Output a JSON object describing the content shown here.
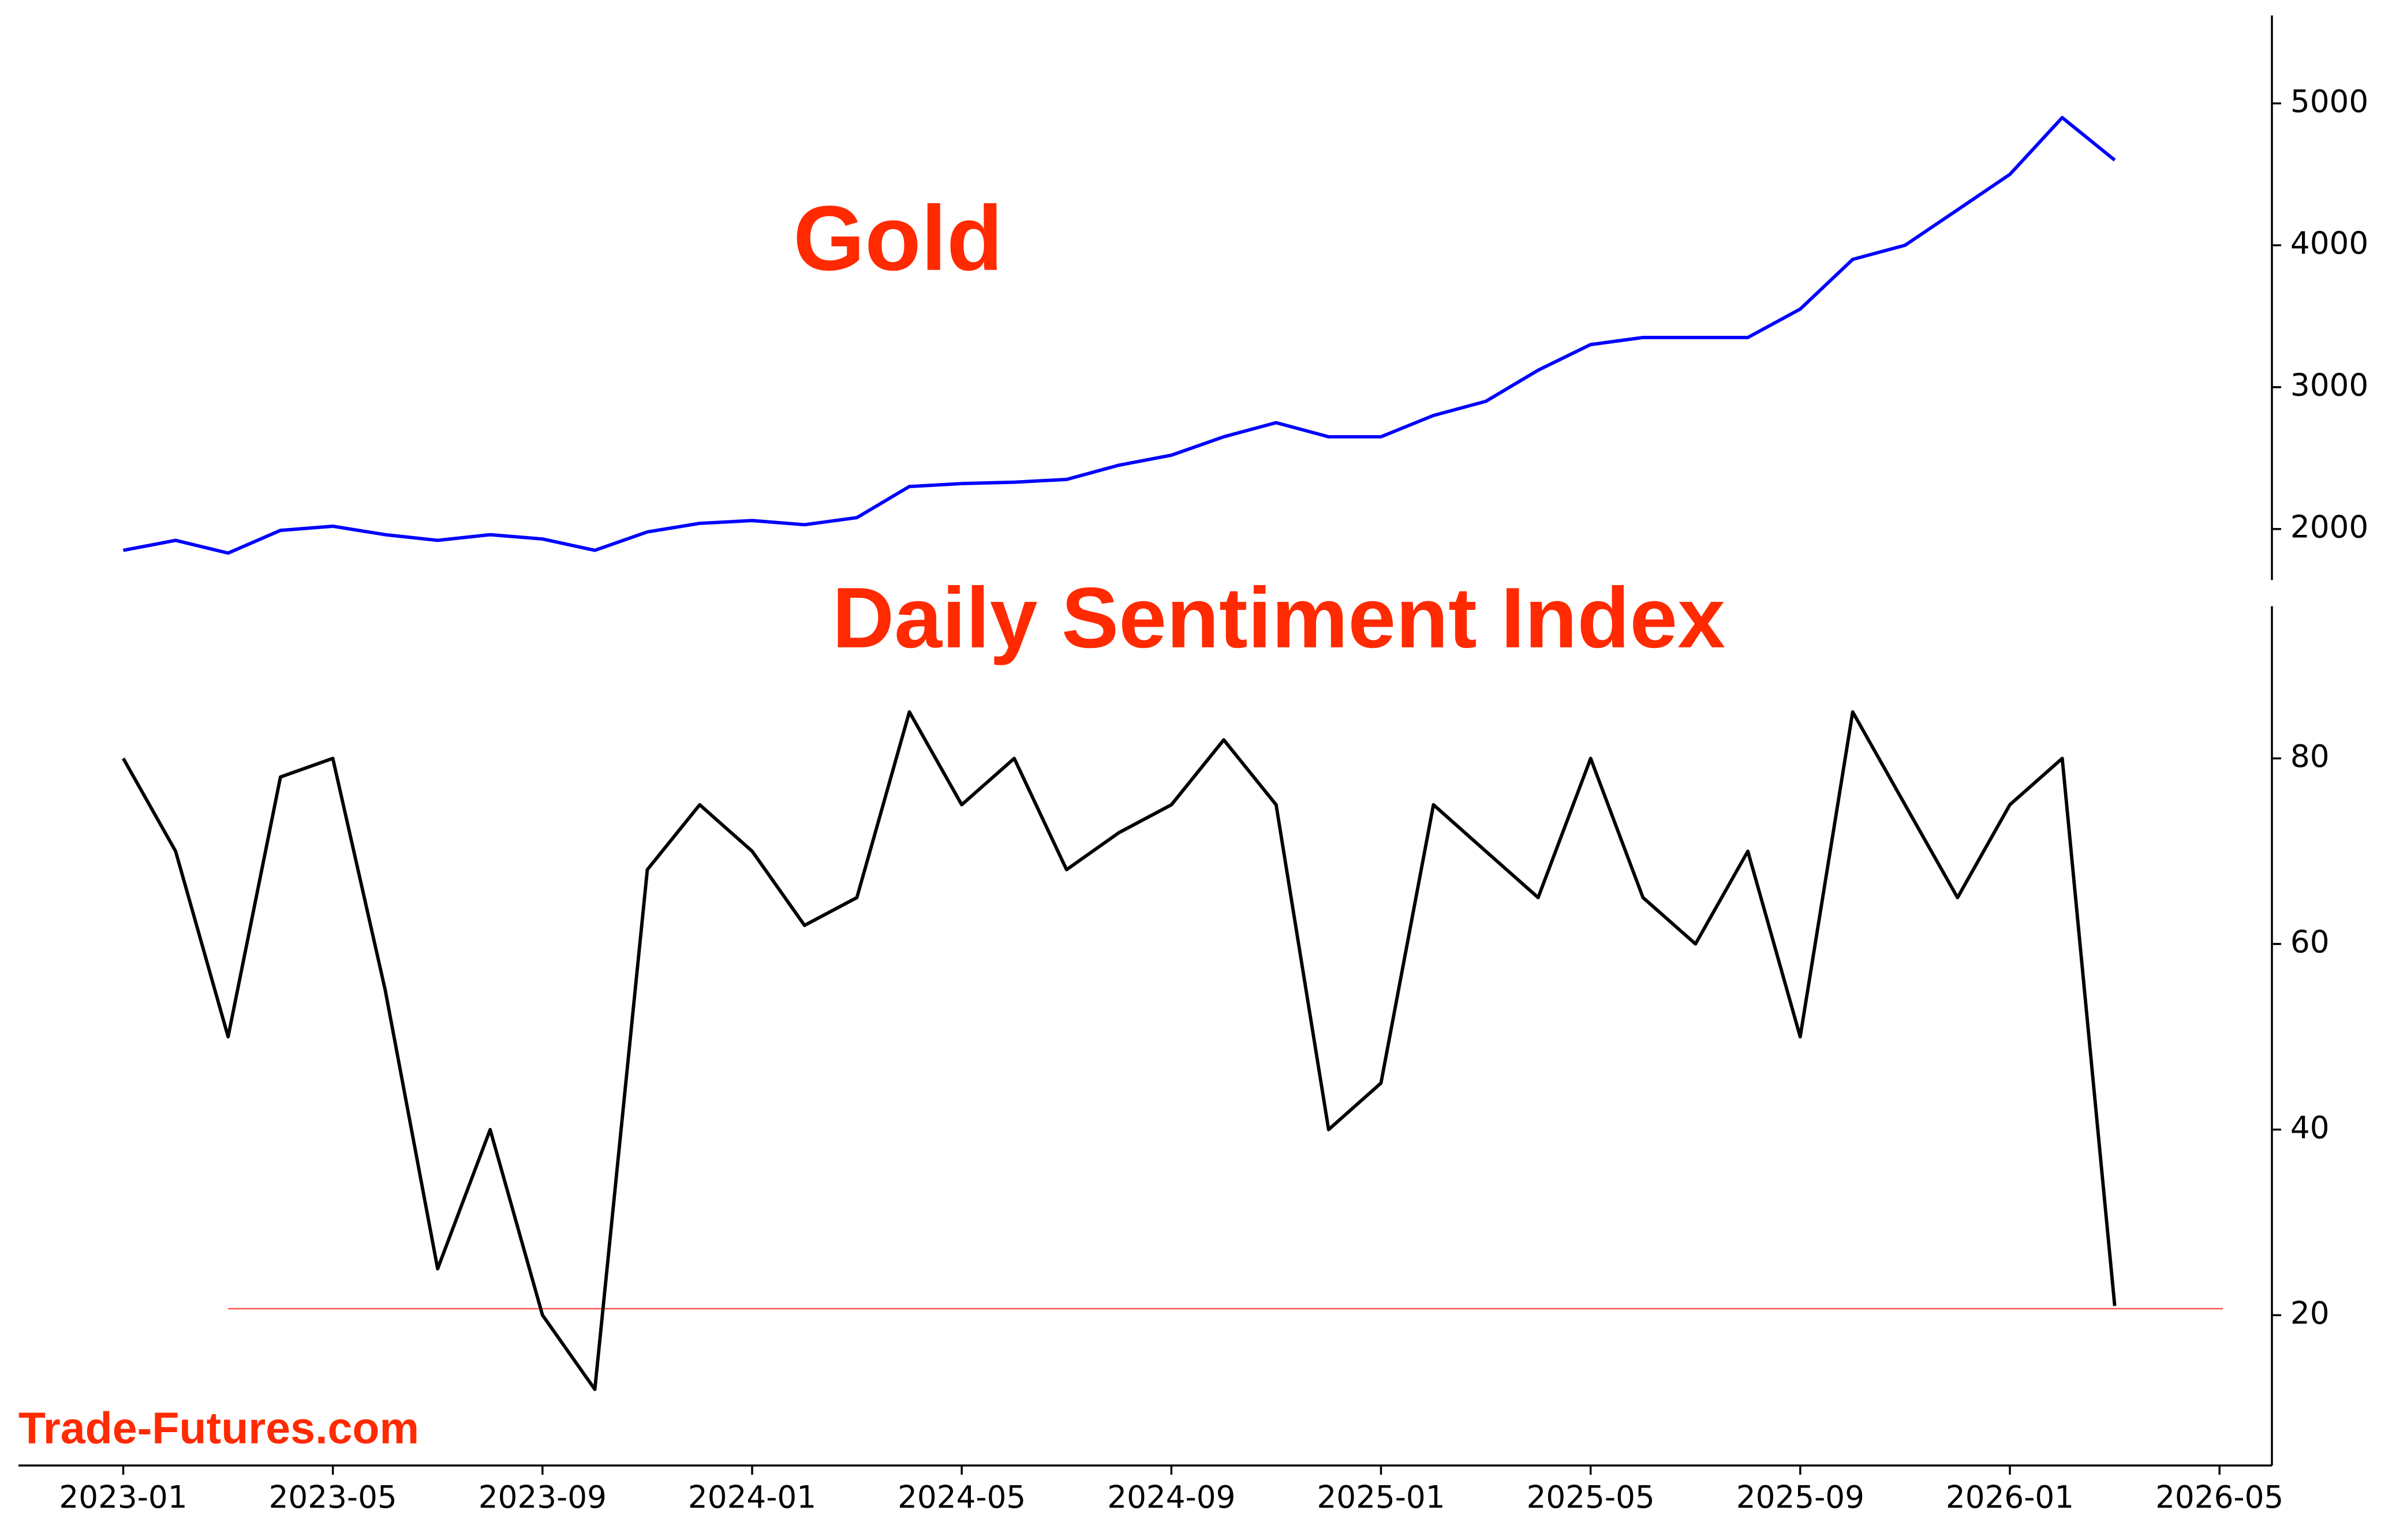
{
  "chart_data": [
    {
      "type": "line",
      "title": "Gold",
      "title_color": "#ff2a00",
      "x": [
        "2023-01",
        "2023-02",
        "2023-03",
        "2023-04",
        "2023-05",
        "2023-06",
        "2023-07",
        "2023-08",
        "2023-09",
        "2023-10",
        "2023-11",
        "2023-12",
        "2024-01",
        "2024-02",
        "2024-03",
        "2024-04",
        "2024-05",
        "2024-06",
        "2024-07",
        "2024-08",
        "2024-09",
        "2024-10",
        "2024-11",
        "2024-12",
        "2025-01",
        "2025-02",
        "2025-03",
        "2025-04",
        "2025-05",
        "2025-06",
        "2025-07",
        "2025-08",
        "2025-09",
        "2025-10",
        "2025-11",
        "2025-12",
        "2026-01",
        "2026-02",
        "2026-03"
      ],
      "series": [
        {
          "color": "#0000ff",
          "values": [
            1850,
            1920,
            1830,
            1990,
            2020,
            1960,
            1920,
            1960,
            1930,
            1850,
            1980,
            2040,
            2060,
            2030,
            2080,
            2300,
            2320,
            2330,
            2350,
            2450,
            2520,
            2650,
            2750,
            2650,
            2650,
            2800,
            2900,
            3120,
            3300,
            3350,
            3350,
            3350,
            3550,
            3900,
            4000,
            4250,
            4500,
            4900,
            4600
          ]
        }
      ],
      "xlim": [
        "2022-11",
        "2026-06"
      ],
      "ylim": [
        1640,
        5620
      ],
      "yticks": [
        2000,
        3000,
        4000,
        5000
      ]
    },
    {
      "type": "line",
      "title": "Daily Sentiment Index",
      "title_color": "#ff2a00",
      "x": [
        "2023-01",
        "2023-02",
        "2023-03",
        "2023-04",
        "2023-05",
        "2023-06",
        "2023-07",
        "2023-08",
        "2023-09",
        "2023-10",
        "2023-11",
        "2023-12",
        "2024-01",
        "2024-02",
        "2024-03",
        "2024-04",
        "2024-05",
        "2024-06",
        "2024-07",
        "2024-08",
        "2024-09",
        "2024-10",
        "2024-11",
        "2024-12",
        "2025-01",
        "2025-02",
        "2025-03",
        "2025-04",
        "2025-05",
        "2025-06",
        "2025-07",
        "2025-08",
        "2025-09",
        "2025-10",
        "2025-11",
        "2025-12",
        "2026-01",
        "2026-02",
        "2026-03"
      ],
      "series": [
        {
          "color": "#000000",
          "values": [
            80,
            70,
            50,
            78,
            80,
            55,
            25,
            40,
            20,
            12,
            68,
            75,
            70,
            62,
            65,
            85,
            75,
            80,
            68,
            72,
            75,
            82,
            75,
            40,
            45,
            75,
            70,
            65,
            80,
            65,
            60,
            70,
            50,
            85,
            75,
            65,
            75,
            80,
            21
          ]
        }
      ],
      "xlim": [
        "2022-11",
        "2026-06"
      ],
      "xticks": [
        "2023-01",
        "2023-05",
        "2023-09",
        "2024-01",
        "2024-05",
        "2024-09",
        "2025-01",
        "2025-05",
        "2025-09",
        "2026-01",
        "2026-05"
      ],
      "ylim": [
        3.8,
        96.4
      ],
      "yticks": [
        20,
        40,
        60,
        80
      ],
      "reference_line": {
        "value": 20.7,
        "color": "#ff5a5a"
      },
      "source": "Trade-Futures.com"
    }
  ]
}
